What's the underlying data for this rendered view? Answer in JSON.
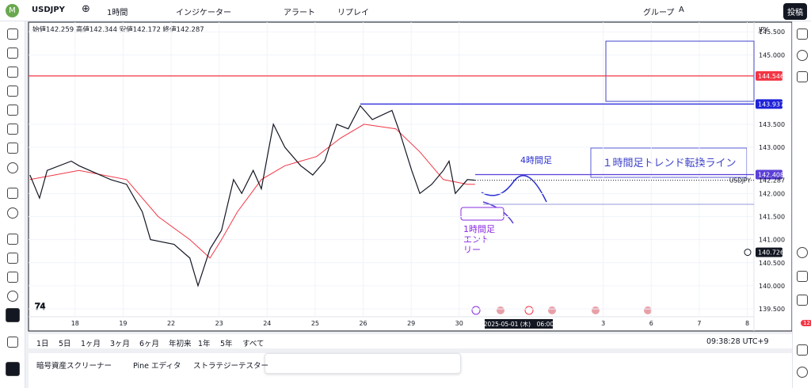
{
  "toolbar": {
    "symbol": "USDJPY",
    "interval": "1時間",
    "indicators": "インジケーター",
    "alert": "アラート",
    "replay": "リプレイ",
    "group": "グループ",
    "font": "A",
    "publish": "投稿"
  },
  "ohlc": "始値142.259 高値142.344 安値142.172 終値142.287",
  "currency": "JPY",
  "chart": {
    "xlim": [
      -0.97,
      14.14
    ],
    "ylim": [
      139.33,
      145.71
    ],
    "xticks": [
      {
        "value": 0,
        "label": "18"
      },
      {
        "value": 1,
        "label": "19"
      },
      {
        "value": 2,
        "label": "22"
      },
      {
        "value": 3,
        "label": "23"
      },
      {
        "value": 4,
        "label": "24"
      },
      {
        "value": 5,
        "label": "25"
      },
      {
        "value": 6,
        "label": "26"
      },
      {
        "value": 7,
        "label": "29"
      },
      {
        "value": 8,
        "label": "30"
      },
      {
        "value": 11,
        "label": "3"
      },
      {
        "value": 12,
        "label": "6"
      },
      {
        "value": 13,
        "label": "7"
      },
      {
        "value": 14,
        "label": "8"
      }
    ],
    "yticks": [
      {
        "value": 145.5,
        "label": "145.500"
      },
      {
        "value": 145,
        "label": "145.000"
      },
      {
        "value": 143.5,
        "label": "143.500"
      },
      {
        "value": 143,
        "label": "143.000"
      },
      {
        "value": 142,
        "label": "142.000"
      },
      {
        "value": 141.5,
        "label": "141.500"
      },
      {
        "value": 141,
        "label": "141.000"
      },
      {
        "value": 140.5,
        "label": "140.500"
      },
      {
        "value": 140,
        "label": "140.000"
      },
      {
        "value": 139.5,
        "label": "139.500"
      }
    ],
    "price_x": [
      -0.94,
      -0.74,
      -0.58,
      -0.08,
      0.08,
      0.74,
      1.07,
      1.4,
      1.57,
      2.06,
      2.39,
      2.56,
      2.81,
      3.05,
      3.3,
      3.47,
      3.71,
      3.88,
      4.04,
      4.13,
      4.37,
      4.7,
      4.95,
      5.2,
      5.45,
      5.69,
      5.94,
      6.19,
      6.6,
      6.77,
      7.01,
      7.18,
      7.43,
      7.67,
      7.79,
      7.92,
      8.17,
      8.33
    ],
    "price": [
      142.4,
      141.9,
      142.5,
      142.7,
      142.6,
      142.3,
      142.2,
      141.6,
      141.0,
      140.9,
      140.6,
      140.0,
      140.8,
      141.2,
      142.3,
      142.0,
      142.5,
      142.1,
      143.0,
      143.5,
      143.0,
      142.6,
      142.4,
      142.7,
      143.5,
      143.4,
      143.9,
      143.6,
      143.8,
      143.3,
      142.5,
      142.0,
      142.2,
      142.5,
      142.7,
      142.0,
      142.3,
      142.287
    ],
    "ma_x": [
      -0.94,
      0.08,
      1.07,
      1.73,
      2.39,
      2.81,
      3.05,
      3.38,
      3.88,
      4.37,
      5.03,
      5.53,
      6.02,
      6.68,
      7.18,
      7.67,
      8.17,
      8.33
    ],
    "ma": [
      142.3,
      142.5,
      142.3,
      141.5,
      141.0,
      140.6,
      141.0,
      141.6,
      142.3,
      142.6,
      142.8,
      143.2,
      143.5,
      143.4,
      142.9,
      142.3,
      142.2,
      142.2
    ],
    "levels": [
      {
        "value": 144.546,
        "label": "144.546",
        "color": "#f23645"
      },
      {
        "value": 143.937,
        "label": "143.937",
        "color": "#1e22d8"
      },
      {
        "value": 142.408,
        "label": "142.408",
        "color": "#5b3fd6"
      },
      {
        "value": 140.726,
        "label": "140.726",
        "color": "#131722"
      }
    ],
    "last": {
      "value": 142.287,
      "label": "142.287",
      "name": "USDJPY"
    },
    "crosshair": "2025-05-01 (木)　06:00"
  },
  "annotations": {
    "trend_line": "１時間足トレンド転換ライン",
    "h4": "4時間足",
    "entry": [
      "1時間足",
      "エント",
      "リー"
    ]
  },
  "ranges": [
    "1日",
    "5日",
    "1ヶ月",
    "3ヶ月",
    "6ヶ月",
    "年初来",
    "1年",
    "5年",
    "すべて"
  ],
  "clock": "09:38:28 UTC+9",
  "tabs": [
    "暗号資産スクリーナー",
    "Pine エディタ",
    "ストラテジーテスター"
  ],
  "notifications": "12"
}
